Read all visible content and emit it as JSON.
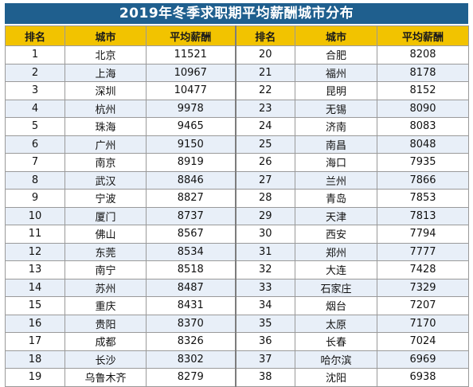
{
  "title": "2019年冬季求职期平均薪酬城市分布",
  "headers": [
    "排名",
    "城市",
    "平均薪酬",
    "排名",
    "城市",
    "平均薪酬"
  ],
  "rows": [
    [
      {
        "rank": "1",
        "city": "北京",
        "salary": "11521"
      },
      {
        "rank": "20",
        "city": "合肥",
        "salary": "8208"
      }
    ],
    [
      {
        "rank": "2",
        "city": "上海",
        "salary": "10967"
      },
      {
        "rank": "21",
        "city": "福州",
        "salary": "8178"
      }
    ],
    [
      {
        "rank": "3",
        "city": "深圳",
        "salary": "10477"
      },
      {
        "rank": "22",
        "city": "昆明",
        "salary": "8152"
      }
    ],
    [
      {
        "rank": "4",
        "city": "杭州",
        "salary": "9978"
      },
      {
        "rank": "23",
        "city": "无锡",
        "salary": "8090"
      }
    ],
    [
      {
        "rank": "5",
        "city": "珠海",
        "salary": "9465"
      },
      {
        "rank": "24",
        "city": "济南",
        "salary": "8083"
      }
    ],
    [
      {
        "rank": "6",
        "city": "广州",
        "salary": "9150"
      },
      {
        "rank": "25",
        "city": "南昌",
        "salary": "8048"
      }
    ],
    [
      {
        "rank": "7",
        "city": "南京",
        "salary": "8919"
      },
      {
        "rank": "26",
        "city": "海口",
        "salary": "7935"
      }
    ],
    [
      {
        "rank": "8",
        "city": "武汉",
        "salary": "8846"
      },
      {
        "rank": "27",
        "city": "兰州",
        "salary": "7866"
      }
    ],
    [
      {
        "rank": "9",
        "city": "宁波",
        "salary": "8827"
      },
      {
        "rank": "28",
        "city": "青岛",
        "salary": "7853"
      }
    ],
    [
      {
        "rank": "10",
        "city": "厦门",
        "salary": "8737"
      },
      {
        "rank": "29",
        "city": "天津",
        "salary": "7813"
      }
    ],
    [
      {
        "rank": "11",
        "city": "佛山",
        "salary": "8567"
      },
      {
        "rank": "30",
        "city": "西安",
        "salary": "7794"
      }
    ],
    [
      {
        "rank": "12",
        "city": "东莞",
        "salary": "8534"
      },
      {
        "rank": "31",
        "city": "郑州",
        "salary": "7777"
      }
    ],
    [
      {
        "rank": "13",
        "city": "南宁",
        "salary": "8518"
      },
      {
        "rank": "32",
        "city": "大连",
        "salary": "7428"
      }
    ],
    [
      {
        "rank": "14",
        "city": "苏州",
        "salary": "8487"
      },
      {
        "rank": "33",
        "city": "石家庄",
        "salary": "7329"
      }
    ],
    [
      {
        "rank": "15",
        "city": "重庆",
        "salary": "8431"
      },
      {
        "rank": "34",
        "city": "烟台",
        "salary": "7207"
      }
    ],
    [
      {
        "rank": "16",
        "city": "贵阳",
        "salary": "8370"
      },
      {
        "rank": "35",
        "city": "太原",
        "salary": "7170"
      }
    ],
    [
      {
        "rank": "17",
        "city": "成都",
        "salary": "8326"
      },
      {
        "rank": "36",
        "city": "长春",
        "salary": "7024"
      }
    ],
    [
      {
        "rank": "18",
        "city": "长沙",
        "salary": "8302"
      },
      {
        "rank": "37",
        "city": "哈尔滨",
        "salary": "6969"
      }
    ],
    [
      {
        "rank": "19",
        "city": "乌鲁木齐",
        "salary": "8279"
      },
      {
        "rank": "38",
        "city": "沈阳",
        "salary": "6938"
      }
    ]
  ],
  "colors": {
    "title_bg": "#1f5f8e",
    "header_bg": "#f2c300",
    "stripe": "#e8eff8"
  }
}
